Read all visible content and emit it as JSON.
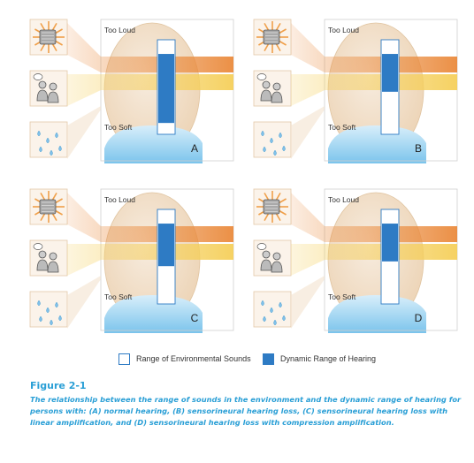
{
  "colors": {
    "loud_band": "#ea8a3c",
    "speech_band": "#f5cf5a",
    "dynamic_range": "#2e7bc4",
    "env_range": "#ffffff",
    "caption": "#2a9fd6",
    "head": "#edd5b8",
    "shoulders": "#7bc4ec"
  },
  "icons": {
    "loud": "loud-speaker-icon",
    "speech": "talking-people-icon",
    "soft": "water-drops-icon"
  },
  "panels": [
    {
      "letter": "A",
      "top_label": "Too Loud",
      "bottom_label": "Too Soft",
      "dynamic_range_fraction": [
        0.15,
        0.88
      ],
      "env_range_fraction": [
        0.0,
        1.0
      ]
    },
    {
      "letter": "B",
      "top_label": "Too Loud",
      "bottom_label": "Too Soft",
      "dynamic_range_fraction": [
        0.15,
        0.55
      ],
      "env_range_fraction": [
        0.0,
        1.0
      ]
    },
    {
      "letter": "C",
      "top_label": "Too Loud",
      "bottom_label": "Too Soft",
      "dynamic_range_fraction": [
        0.15,
        0.6
      ],
      "env_range_fraction": [
        0.0,
        1.0
      ]
    },
    {
      "letter": "D",
      "top_label": "Too Loud",
      "bottom_label": "Too Soft",
      "dynamic_range_fraction": [
        0.15,
        0.55
      ],
      "env_range_fraction": [
        0.0,
        1.0
      ]
    }
  ],
  "legend": {
    "env_label": "Range of Environmental Sounds",
    "dynamic_label": "Dynamic Range of Hearing"
  },
  "caption": {
    "title": "Figure 2-1",
    "text": "The relationship between the range of sounds in the environment and the dynamic range of hearing for persons with: (A) normal hearing, (B) sensorineural hearing loss, (C) sensorineural hearing loss with linear amplification, and (D) sensorineural hearing loss with compression amplification."
  }
}
